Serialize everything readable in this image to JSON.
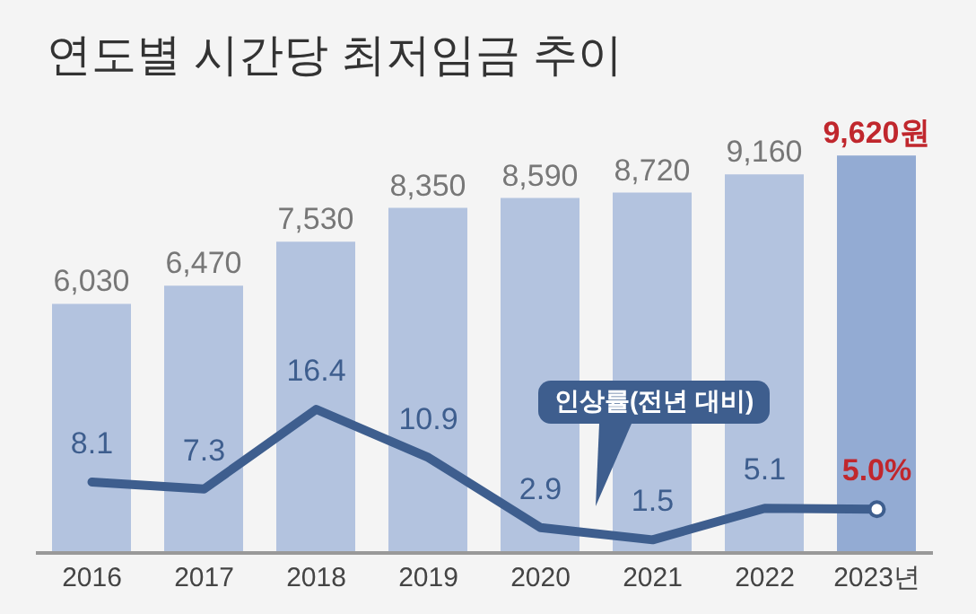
{
  "chart_data": {
    "type": "bar",
    "title": "연도별 시간당 최저임금 추이",
    "categories": [
      "2016",
      "2017",
      "2018",
      "2019",
      "2020",
      "2021",
      "2022",
      "2023년"
    ],
    "series": [
      {
        "colors": [
          "#b3c3df",
          "#b3c3df",
          "#b3c3df",
          "#b3c3df",
          "#b3c3df",
          "#b3c3df",
          "#b3c3df",
          "#93abd3"
        ],
        "values": [
          6030,
          6470,
          7530,
          8350,
          8590,
          8720,
          9160,
          9620
        ],
        "value_labels": [
          "6,030",
          "6,470",
          "7,530",
          "8,350",
          "8,590",
          "8,720",
          "9,160",
          "9,620원"
        ]
      },
      {
        "type": "line",
        "axis": "y2",
        "name": "인상률(전년 대비)",
        "color": "#3e5e8e",
        "values": [
          8.1,
          7.3,
          16.4,
          10.9,
          2.9,
          1.5,
          5.1,
          5.0
        ],
        "value_labels": [
          "8.1",
          "7.3",
          "16.4",
          "10.9",
          "2.9",
          "1.5",
          "5.1",
          "5.0%"
        ]
      }
    ]
  }
}
